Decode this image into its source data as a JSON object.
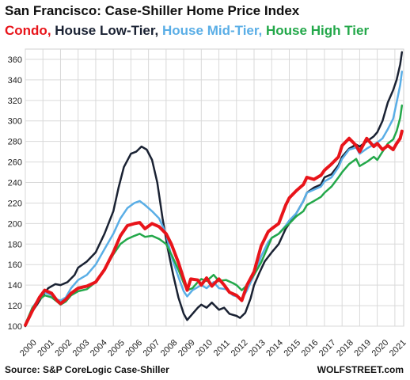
{
  "header": {
    "title": "San Francisco: Case-Shiller Home Price Index"
  },
  "legend": [
    {
      "label": "Condo,",
      "color": "#e8141a"
    },
    {
      "label": "House Low-Tier,",
      "color": "#1a2233"
    },
    {
      "label": "House Mid-Tier,",
      "color": "#5aaee6"
    },
    {
      "label": "House High Tier",
      "color": "#23a84a"
    }
  ],
  "footer": {
    "source": "Source: S&P CoreLogic Case-Shiller",
    "brand": "WOLFSTREET.com"
  },
  "chart_data": {
    "type": "line",
    "title": "San Francisco: Case-Shiller Home Price Index",
    "xlabel": "",
    "ylabel": "",
    "xlim": [
      2000,
      2021.5
    ],
    "ylim": [
      100,
      370
    ],
    "x_ticks": [
      "2000",
      "2001",
      "2002",
      "2003",
      "2004",
      "2005",
      "2006",
      "2007",
      "2008",
      "2009",
      "2010",
      "2011",
      "2012",
      "2013",
      "2014",
      "2015",
      "2016",
      "2017",
      "2018",
      "2019",
      "2020",
      "2021"
    ],
    "y_ticks": [
      100,
      120,
      140,
      160,
      180,
      200,
      220,
      240,
      260,
      280,
      300,
      320,
      340,
      360
    ],
    "grid": true,
    "series": [
      {
        "name": "House Low-Tier",
        "color": "#1a2233",
        "width": 2.5,
        "points": [
          [
            2000,
            100
          ],
          [
            2000.3,
            112
          ],
          [
            2000.7,
            122
          ],
          [
            2001,
            130
          ],
          [
            2001.3,
            137
          ],
          [
            2001.7,
            141
          ],
          [
            2002,
            140
          ],
          [
            2002.4,
            143
          ],
          [
            2002.8,
            150
          ],
          [
            2003,
            157
          ],
          [
            2003.5,
            163
          ],
          [
            2004,
            172
          ],
          [
            2004.5,
            190
          ],
          [
            2005,
            212
          ],
          [
            2005.3,
            235
          ],
          [
            2005.6,
            255
          ],
          [
            2006,
            268
          ],
          [
            2006.3,
            270
          ],
          [
            2006.6,
            275
          ],
          [
            2006.9,
            272
          ],
          [
            2007.2,
            262
          ],
          [
            2007.5,
            240
          ],
          [
            2007.8,
            205
          ],
          [
            2008.1,
            175
          ],
          [
            2008.4,
            150
          ],
          [
            2008.7,
            128
          ],
          [
            2009,
            112
          ],
          [
            2009.2,
            106
          ],
          [
            2009.5,
            112
          ],
          [
            2009.8,
            118
          ],
          [
            2010,
            121
          ],
          [
            2010.3,
            118
          ],
          [
            2010.6,
            123
          ],
          [
            2011,
            116
          ],
          [
            2011.3,
            118
          ],
          [
            2011.6,
            112
          ],
          [
            2012,
            110
          ],
          [
            2012.2,
            108
          ],
          [
            2012.5,
            113
          ],
          [
            2012.8,
            127
          ],
          [
            2013,
            140
          ],
          [
            2013.3,
            152
          ],
          [
            2013.6,
            163
          ],
          [
            2014,
            172
          ],
          [
            2014.4,
            180
          ],
          [
            2014.8,
            195
          ],
          [
            2015,
            200
          ],
          [
            2015.4,
            210
          ],
          [
            2015.8,
            222
          ],
          [
            2016,
            230
          ],
          [
            2016.4,
            235
          ],
          [
            2016.8,
            238
          ],
          [
            2017,
            245
          ],
          [
            2017.4,
            248
          ],
          [
            2017.8,
            257
          ],
          [
            2018,
            265
          ],
          [
            2018.4,
            273
          ],
          [
            2018.8,
            277
          ],
          [
            2019,
            275
          ],
          [
            2019.4,
            280
          ],
          [
            2019.8,
            285
          ],
          [
            2020,
            289
          ],
          [
            2020.3,
            300
          ],
          [
            2020.6,
            318
          ],
          [
            2020.9,
            330
          ],
          [
            2021.1,
            340
          ],
          [
            2021.3,
            355
          ],
          [
            2021.4,
            367
          ]
        ]
      },
      {
        "name": "House Mid-Tier",
        "color": "#5aaee6",
        "width": 2.5,
        "points": [
          [
            2000,
            101
          ],
          [
            2000.4,
            118
          ],
          [
            2000.8,
            128
          ],
          [
            2001.1,
            133
          ],
          [
            2001.5,
            130
          ],
          [
            2001.8,
            126
          ],
          [
            2002,
            125
          ],
          [
            2002.3,
            128
          ],
          [
            2002.6,
            137
          ],
          [
            2003,
            145
          ],
          [
            2003.5,
            150
          ],
          [
            2004,
            160
          ],
          [
            2004.5,
            175
          ],
          [
            2005,
            190
          ],
          [
            2005.4,
            205
          ],
          [
            2005.8,
            215
          ],
          [
            2006.2,
            220
          ],
          [
            2006.5,
            222
          ],
          [
            2006.8,
            218
          ],
          [
            2007.2,
            212
          ],
          [
            2007.6,
            205
          ],
          [
            2008,
            190
          ],
          [
            2008.3,
            168
          ],
          [
            2008.7,
            148
          ],
          [
            2009,
            134
          ],
          [
            2009.2,
            129
          ],
          [
            2009.5,
            135
          ],
          [
            2009.8,
            138
          ],
          [
            2010,
            140
          ],
          [
            2010.3,
            137
          ],
          [
            2010.7,
            143
          ],
          [
            2011,
            137
          ],
          [
            2011.4,
            136
          ],
          [
            2011.8,
            130
          ],
          [
            2012,
            129
          ],
          [
            2012.3,
            126
          ],
          [
            2012.6,
            135
          ],
          [
            2013,
            150
          ],
          [
            2013.4,
            168
          ],
          [
            2013.8,
            182
          ],
          [
            2014,
            186
          ],
          [
            2014.4,
            190
          ],
          [
            2014.8,
            198
          ],
          [
            2015,
            203
          ],
          [
            2015.4,
            210
          ],
          [
            2015.8,
            222
          ],
          [
            2016,
            230
          ],
          [
            2016.4,
            233
          ],
          [
            2016.8,
            236
          ],
          [
            2017,
            241
          ],
          [
            2017.4,
            245
          ],
          [
            2017.8,
            255
          ],
          [
            2018,
            263
          ],
          [
            2018.4,
            272
          ],
          [
            2018.8,
            274
          ],
          [
            2019,
            268
          ],
          [
            2019.4,
            273
          ],
          [
            2019.8,
            277
          ],
          [
            2020,
            279
          ],
          [
            2020.3,
            283
          ],
          [
            2020.6,
            292
          ],
          [
            2020.9,
            302
          ],
          [
            2021.1,
            318
          ],
          [
            2021.3,
            335
          ],
          [
            2021.4,
            348
          ]
        ]
      },
      {
        "name": "House High Tier",
        "color": "#23a84a",
        "width": 2.5,
        "points": [
          [
            2000,
            102
          ],
          [
            2000.4,
            118
          ],
          [
            2000.8,
            126
          ],
          [
            2001.1,
            130
          ],
          [
            2001.5,
            128
          ],
          [
            2001.8,
            124
          ],
          [
            2002,
            121
          ],
          [
            2002.3,
            124
          ],
          [
            2002.6,
            130
          ],
          [
            2003,
            134
          ],
          [
            2003.5,
            136
          ],
          [
            2004,
            143
          ],
          [
            2004.5,
            155
          ],
          [
            2005,
            170
          ],
          [
            2005.4,
            180
          ],
          [
            2005.8,
            185
          ],
          [
            2006.2,
            188
          ],
          [
            2006.5,
            190
          ],
          [
            2006.8,
            187
          ],
          [
            2007.2,
            188
          ],
          [
            2007.6,
            185
          ],
          [
            2008,
            180
          ],
          [
            2008.3,
            170
          ],
          [
            2008.7,
            155
          ],
          [
            2009,
            142
          ],
          [
            2009.2,
            135
          ],
          [
            2009.5,
            137
          ],
          [
            2009.8,
            143
          ],
          [
            2010,
            146
          ],
          [
            2010.3,
            144
          ],
          [
            2010.7,
            150
          ],
          [
            2011,
            144
          ],
          [
            2011.4,
            145
          ],
          [
            2011.8,
            142
          ],
          [
            2012,
            140
          ],
          [
            2012.3,
            135
          ],
          [
            2012.6,
            140
          ],
          [
            2013,
            150
          ],
          [
            2013.4,
            162
          ],
          [
            2013.8,
            178
          ],
          [
            2014,
            186
          ],
          [
            2014.4,
            190
          ],
          [
            2014.8,
            197
          ],
          [
            2015,
            200
          ],
          [
            2015.4,
            207
          ],
          [
            2015.8,
            212
          ],
          [
            2016,
            218
          ],
          [
            2016.4,
            222
          ],
          [
            2016.8,
            226
          ],
          [
            2017,
            230
          ],
          [
            2017.4,
            236
          ],
          [
            2017.8,
            245
          ],
          [
            2018,
            250
          ],
          [
            2018.4,
            258
          ],
          [
            2018.8,
            263
          ],
          [
            2019,
            256
          ],
          [
            2019.4,
            260
          ],
          [
            2019.8,
            265
          ],
          [
            2020,
            262
          ],
          [
            2020.3,
            270
          ],
          [
            2020.6,
            278
          ],
          [
            2020.9,
            282
          ],
          [
            2021.1,
            290
          ],
          [
            2021.3,
            303
          ],
          [
            2021.4,
            315
          ]
        ]
      },
      {
        "name": "Condo",
        "color": "#e8141a",
        "width": 4,
        "points": [
          [
            2000,
            101
          ],
          [
            2000.4,
            115
          ],
          [
            2000.8,
            128
          ],
          [
            2001.1,
            135
          ],
          [
            2001.5,
            132
          ],
          [
            2001.8,
            125
          ],
          [
            2002,
            122
          ],
          [
            2002.3,
            126
          ],
          [
            2002.6,
            132
          ],
          [
            2003,
            137
          ],
          [
            2003.5,
            139
          ],
          [
            2004,
            143
          ],
          [
            2004.5,
            155
          ],
          [
            2005,
            172
          ],
          [
            2005.4,
            188
          ],
          [
            2005.8,
            198
          ],
          [
            2006.2,
            200
          ],
          [
            2006.5,
            201
          ],
          [
            2006.8,
            195
          ],
          [
            2007.2,
            200
          ],
          [
            2007.6,
            197
          ],
          [
            2008,
            190
          ],
          [
            2008.3,
            180
          ],
          [
            2008.7,
            162
          ],
          [
            2009,
            146
          ],
          [
            2009.2,
            135
          ],
          [
            2009.4,
            146
          ],
          [
            2009.8,
            145
          ],
          [
            2010,
            140
          ],
          [
            2010.3,
            147
          ],
          [
            2010.6,
            139
          ],
          [
            2011,
            146
          ],
          [
            2011.3,
            140
          ],
          [
            2011.6,
            133
          ],
          [
            2012,
            130
          ],
          [
            2012.3,
            125
          ],
          [
            2012.6,
            140
          ],
          [
            2013,
            153
          ],
          [
            2013.4,
            178
          ],
          [
            2013.8,
            192
          ],
          [
            2014,
            195
          ],
          [
            2014.4,
            200
          ],
          [
            2014.8,
            218
          ],
          [
            2015,
            225
          ],
          [
            2015.4,
            232
          ],
          [
            2015.8,
            238
          ],
          [
            2016,
            245
          ],
          [
            2016.4,
            243
          ],
          [
            2016.8,
            247
          ],
          [
            2017,
            252
          ],
          [
            2017.4,
            258
          ],
          [
            2017.8,
            265
          ],
          [
            2018,
            276
          ],
          [
            2018.4,
            283
          ],
          [
            2018.8,
            276
          ],
          [
            2019,
            270
          ],
          [
            2019.4,
            283
          ],
          [
            2019.8,
            275
          ],
          [
            2020,
            278
          ],
          [
            2020.3,
            272
          ],
          [
            2020.6,
            276
          ],
          [
            2020.9,
            272
          ],
          [
            2021.1,
            278
          ],
          [
            2021.3,
            283
          ],
          [
            2021.4,
            290
          ]
        ]
      }
    ]
  }
}
